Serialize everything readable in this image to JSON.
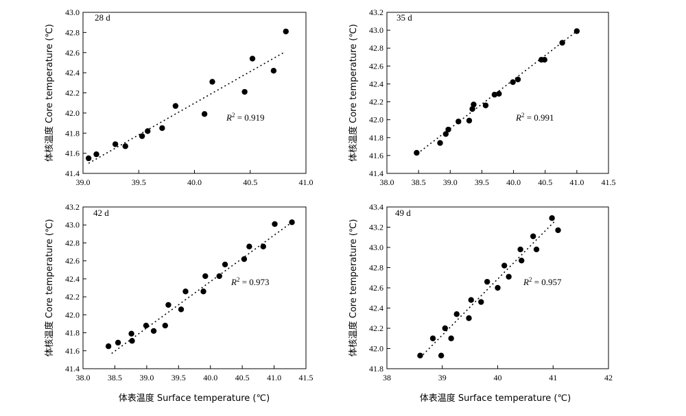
{
  "x_axis_label": "体表温度 Surface temperature (℃)",
  "chart_data": [
    {
      "type": "scatter",
      "label": "28 d",
      "r2_prefix": "R",
      "r2_sup": "2",
      "r2_value": " = 0.919",
      "ylabel": "体核温度 Core temperature (℃)",
      "xlim": [
        39.0,
        41.0
      ],
      "ylim": [
        41.4,
        43.0
      ],
      "xticks": [
        39.0,
        39.5,
        40.0,
        40.5,
        41.0
      ],
      "yticks": [
        41.4,
        41.6,
        41.8,
        42.0,
        42.2,
        42.4,
        42.6,
        42.8,
        43.0
      ],
      "x_decimals": 1,
      "y_decimals": 1,
      "trend": [
        [
          39.05,
          41.5
        ],
        [
          40.8,
          42.6
        ]
      ],
      "points": [
        [
          39.05,
          41.55
        ],
        [
          39.12,
          41.59
        ],
        [
          39.29,
          41.69
        ],
        [
          39.38,
          41.67
        ],
        [
          39.53,
          41.77
        ],
        [
          39.58,
          41.82
        ],
        [
          39.71,
          41.85
        ],
        [
          39.83,
          42.07
        ],
        [
          40.09,
          41.99
        ],
        [
          40.16,
          42.31
        ],
        [
          40.45,
          42.21
        ],
        [
          40.52,
          42.54
        ],
        [
          40.71,
          42.42
        ],
        [
          40.82,
          42.81
        ]
      ]
    },
    {
      "type": "scatter",
      "label": "35 d",
      "r2_prefix": "R",
      "r2_sup": "2",
      "r2_value": " = 0.991",
      "ylabel": "体核温度 Core temperature (℃)",
      "xlim": [
        38.0,
        41.5
      ],
      "ylim": [
        41.4,
        43.2
      ],
      "xticks": [
        38.0,
        38.5,
        39.0,
        39.5,
        40.0,
        40.5,
        41.0,
        41.5
      ],
      "yticks": [
        41.4,
        41.6,
        41.8,
        42.0,
        42.2,
        42.4,
        42.6,
        42.8,
        43.0,
        43.2
      ],
      "x_decimals": 1,
      "y_decimals": 1,
      "trend": [
        [
          38.48,
          41.62
        ],
        [
          41.0,
          42.99
        ]
      ],
      "points": [
        [
          38.47,
          41.63
        ],
        [
          38.84,
          41.74
        ],
        [
          38.93,
          41.84
        ],
        [
          38.97,
          41.89
        ],
        [
          39.13,
          41.98
        ],
        [
          39.3,
          41.99
        ],
        [
          39.35,
          42.12
        ],
        [
          39.37,
          42.17
        ],
        [
          39.56,
          42.16
        ],
        [
          39.7,
          42.28
        ],
        [
          39.77,
          42.29
        ],
        [
          39.99,
          42.42
        ],
        [
          40.07,
          42.45
        ],
        [
          40.44,
          42.67
        ],
        [
          40.49,
          42.67
        ],
        [
          40.77,
          42.86
        ],
        [
          41.0,
          42.99
        ]
      ]
    },
    {
      "type": "scatter",
      "label": "42 d",
      "r2_prefix": "R",
      "r2_sup": "2",
      "r2_value": " = 0.973",
      "ylabel": "体核温度 Core temperature (℃)",
      "xlim": [
        38.0,
        41.5
      ],
      "ylim": [
        41.4,
        43.2
      ],
      "xticks": [
        38.0,
        38.5,
        39.0,
        39.5,
        40.0,
        40.5,
        41.0,
        41.5
      ],
      "yticks": [
        41.4,
        41.6,
        41.8,
        42.0,
        42.2,
        42.4,
        42.6,
        42.8,
        43.0,
        43.2
      ],
      "x_decimals": 1,
      "y_decimals": 1,
      "trend": [
        [
          38.45,
          41.57
        ],
        [
          41.28,
          43.03
        ]
      ],
      "points": [
        [
          38.4,
          41.65
        ],
        [
          38.55,
          41.69
        ],
        [
          38.76,
          41.79
        ],
        [
          38.77,
          41.71
        ],
        [
          38.99,
          41.88
        ],
        [
          39.11,
          41.82
        ],
        [
          39.29,
          41.88
        ],
        [
          39.34,
          42.11
        ],
        [
          39.54,
          42.06
        ],
        [
          39.61,
          42.26
        ],
        [
          39.89,
          42.26
        ],
        [
          39.92,
          42.43
        ],
        [
          40.14,
          42.43
        ],
        [
          40.23,
          42.56
        ],
        [
          40.53,
          42.62
        ],
        [
          40.61,
          42.76
        ],
        [
          40.83,
          42.76
        ],
        [
          41.01,
          43.01
        ],
        [
          41.28,
          43.03
        ]
      ]
    },
    {
      "type": "scatter",
      "label": "49 d",
      "r2_prefix": "R",
      "r2_sup": "2",
      "r2_value": " = 0.957",
      "ylabel": "体核温度 Core temperature (℃)",
      "xlim": [
        38,
        42
      ],
      "ylim": [
        41.8,
        43.4
      ],
      "xticks": [
        38,
        39,
        40,
        41,
        42
      ],
      "yticks": [
        41.8,
        42.0,
        42.2,
        42.4,
        42.6,
        42.8,
        43.0,
        43.2,
        43.4
      ],
      "x_decimals": 0,
      "y_decimals": 1,
      "trend": [
        [
          38.6,
          41.91
        ],
        [
          41.05,
          43.27
        ]
      ],
      "points": [
        [
          38.6,
          41.93
        ],
        [
          38.83,
          42.1
        ],
        [
          38.98,
          41.93
        ],
        [
          39.05,
          42.2
        ],
        [
          39.16,
          42.1
        ],
        [
          39.26,
          42.34
        ],
        [
          39.48,
          42.3
        ],
        [
          39.52,
          42.48
        ],
        [
          39.7,
          42.46
        ],
        [
          39.81,
          42.66
        ],
        [
          40.0,
          42.6
        ],
        [
          40.12,
          42.82
        ],
        [
          40.2,
          42.71
        ],
        [
          40.41,
          42.98
        ],
        [
          40.43,
          42.87
        ],
        [
          40.64,
          43.11
        ],
        [
          40.7,
          42.98
        ],
        [
          40.98,
          43.29
        ],
        [
          41.09,
          43.17
        ]
      ]
    }
  ]
}
